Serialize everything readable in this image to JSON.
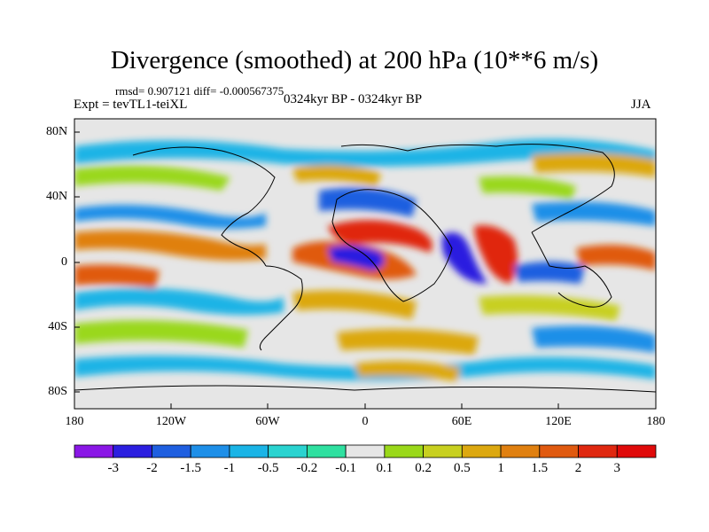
{
  "title": "Divergence (smoothed) at 200 hPa (10**6 m/s)",
  "stats": "rmsd= 0.907121 diff= -0.000567375",
  "experiment": "Expt = tevTL1-teiXL",
  "period": "0324kyr BP - 0324kyr BP",
  "season": "JJA",
  "map": {
    "lat_labels": [
      "80N",
      "40N",
      "0",
      "40S",
      "80S"
    ],
    "lon_labels": [
      "180",
      "120W",
      "60W",
      "0",
      "60E",
      "120E",
      "180"
    ]
  },
  "colorbar": {
    "labels": [
      "-3",
      "-2",
      "-1.5",
      "-1",
      "-0.5",
      "-0.2",
      "-0.1",
      "0.1",
      "0.2",
      "0.5",
      "1",
      "1.5",
      "2",
      "3"
    ],
    "colors": [
      "#8a17e6",
      "#2c1fe0",
      "#1f5fe0",
      "#1e8fe8",
      "#1ab4e6",
      "#2ad3d0",
      "#2fe0a0",
      "#e6e6e6",
      "#9ad81a",
      "#c8d020",
      "#dca810",
      "#e08010",
      "#e05a10",
      "#e02810",
      "#e00a0a"
    ]
  }
}
